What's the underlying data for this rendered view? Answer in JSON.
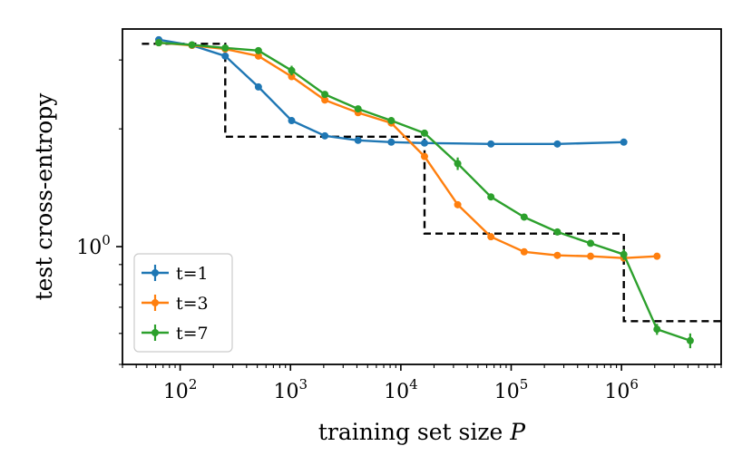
{
  "chart_data": {
    "type": "line",
    "xlabel": "training set size",
    "xlabel_var": "P",
    "ylabel": "test cross-entropy",
    "xscale": "log",
    "yscale": "log",
    "xlim": [
      30,
      8000000
    ],
    "ylim": [
      0.5,
      3.6
    ],
    "grid": false,
    "legend_position": "bottom-left",
    "x_ticks": [
      {
        "base": "10",
        "exp": "2"
      },
      {
        "base": "10",
        "exp": "3"
      },
      {
        "base": "10",
        "exp": "4"
      },
      {
        "base": "10",
        "exp": "5"
      },
      {
        "base": "10",
        "exp": "6"
      }
    ],
    "y_ticks": [
      {
        "base": "10",
        "exp": "0"
      }
    ],
    "series": [
      {
        "name": "t=1",
        "color": "#1f77b4",
        "x": [
          64,
          128,
          256,
          512,
          1024,
          2048,
          4096,
          8192,
          16384,
          65536,
          262144,
          1048576
        ],
        "y": [
          3.38,
          3.27,
          3.07,
          2.56,
          2.1,
          1.92,
          1.87,
          1.85,
          1.84,
          1.83,
          1.83,
          1.85
        ],
        "err": [
          0,
          0,
          0,
          0,
          0,
          0,
          0,
          0,
          0,
          0,
          0,
          0
        ]
      },
      {
        "name": "t=3",
        "color": "#ff7f0e",
        "x": [
          64,
          128,
          256,
          512,
          1024,
          2048,
          4096,
          8192,
          16384,
          32768,
          65536,
          131072,
          262144,
          524288,
          1048576,
          2097152
        ],
        "y": [
          3.32,
          3.27,
          3.2,
          3.07,
          2.72,
          2.37,
          2.2,
          2.07,
          1.7,
          1.28,
          1.06,
          0.97,
          0.95,
          0.945,
          0.935,
          0.945
        ],
        "err": [
          0,
          0,
          0,
          0,
          0.04,
          0.03,
          0.02,
          0.02,
          0,
          0,
          0,
          0,
          0,
          0,
          0,
          0
        ]
      },
      {
        "name": "t=7",
        "color": "#2ca02c",
        "x": [
          64,
          128,
          256,
          512,
          1024,
          2048,
          4096,
          8192,
          16384,
          32768,
          65536,
          131072,
          262144,
          524288,
          1048576,
          2097152,
          4194304
        ],
        "y": [
          3.32,
          3.28,
          3.22,
          3.17,
          2.82,
          2.45,
          2.25,
          2.1,
          1.95,
          1.63,
          1.34,
          1.19,
          1.09,
          1.02,
          0.955,
          0.615,
          0.575
        ],
        "err": [
          0,
          0,
          0,
          0,
          0.08,
          0.03,
          0.03,
          0.03,
          0.02,
          0.06,
          0,
          0,
          0,
          0,
          0.03,
          0.02,
          0.025
        ]
      }
    ],
    "step_line": {
      "style": "dashed",
      "color": "#000000",
      "x": [
        45,
        256,
        256,
        16384,
        16384,
        1048576,
        1048576,
        8000000
      ],
      "y": [
        3.3,
        3.3,
        1.91,
        1.91,
        1.08,
        1.08,
        0.645,
        0.645
      ]
    }
  }
}
